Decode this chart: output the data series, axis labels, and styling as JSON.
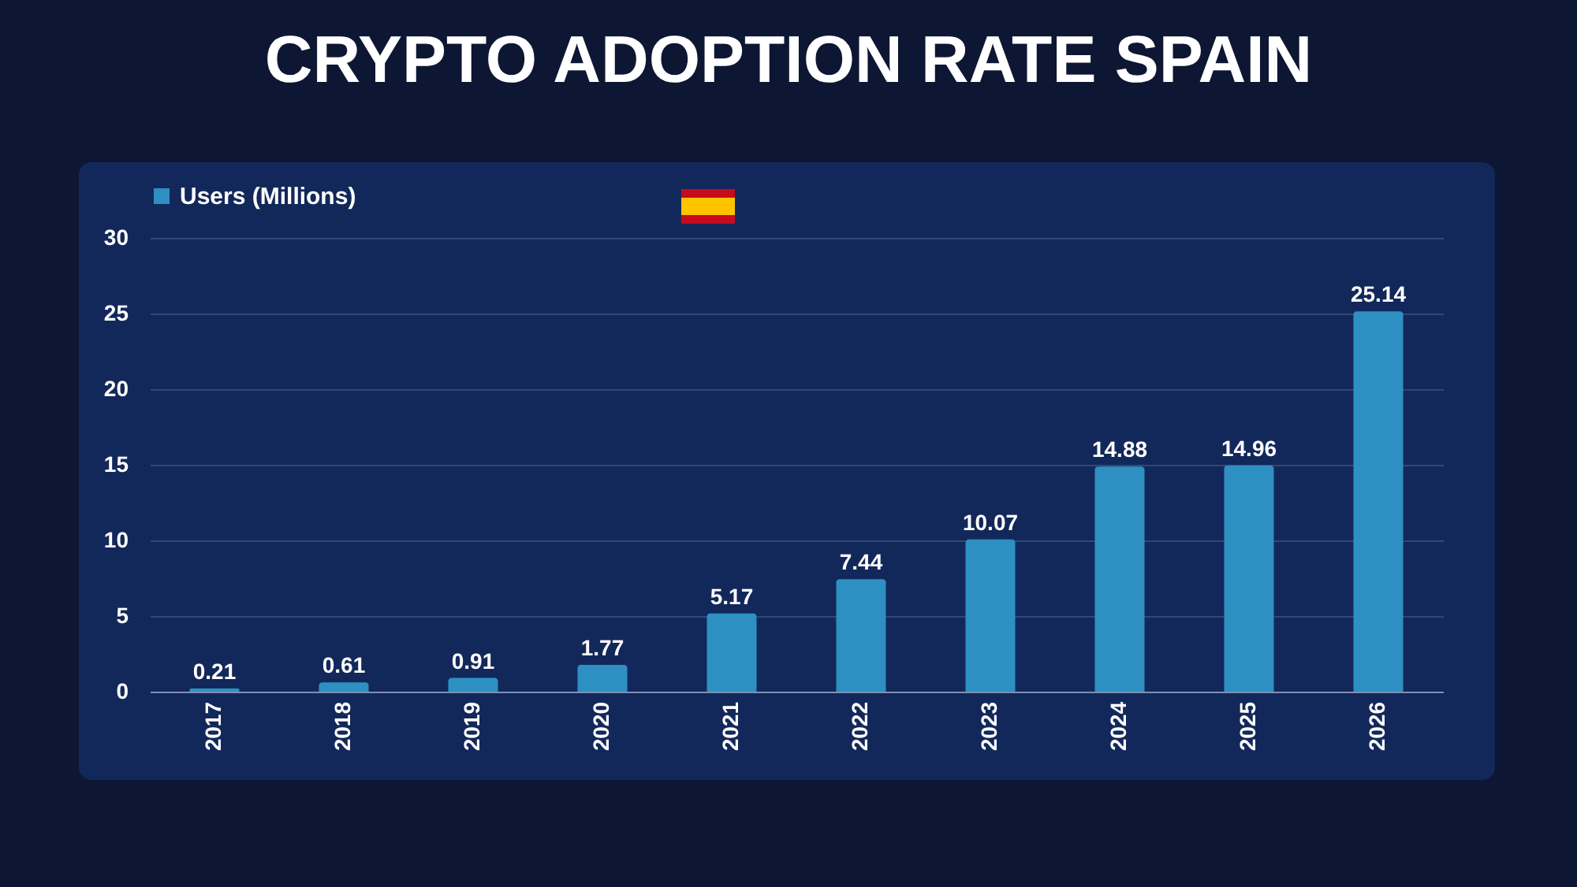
{
  "chart_data": {
    "type": "bar",
    "title": "CRYPTO ADOPTION RATE SPAIN",
    "categories": [
      "2017",
      "2018",
      "2019",
      "2020",
      "2021",
      "2022",
      "2023",
      "2024",
      "2025",
      "2026"
    ],
    "series": [
      {
        "name": "Users (Millions)",
        "color": "#2e8fc2",
        "values": [
          0.21,
          0.61,
          0.91,
          1.77,
          5.17,
          7.44,
          10.07,
          14.88,
          14.96,
          25.14
        ]
      }
    ],
    "ylim": [
      0,
      30
    ],
    "yticks": [
      0,
      5,
      10,
      15,
      20,
      25,
      30
    ],
    "grid": "y",
    "legend": "top",
    "data_labels": true
  }
}
